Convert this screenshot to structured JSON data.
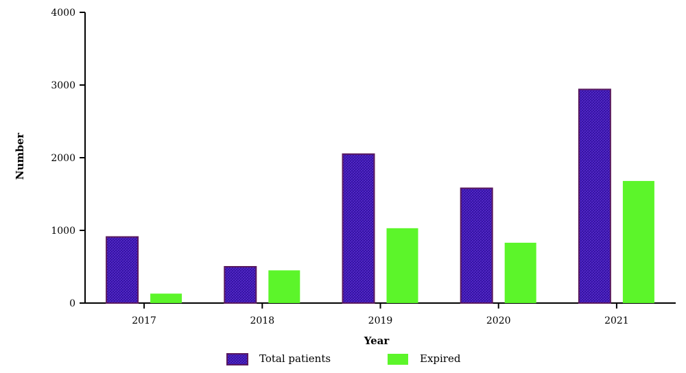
{
  "chart_data": {
    "type": "bar",
    "categories": [
      "2017",
      "2018",
      "2019",
      "2020",
      "2021"
    ],
    "series": [
      {
        "name": "Total patients",
        "values": [
          910,
          500,
          2050,
          1580,
          2940
        ],
        "color": "#3d16b8",
        "border": "#5a1a5e"
      },
      {
        "name": "Expired",
        "values": [
          130,
          450,
          1030,
          830,
          1680
        ],
        "color": "#5cf52a",
        "border": "#5cf52a"
      }
    ],
    "xlabel": "Year",
    "ylabel": "Number",
    "ylim": [
      0,
      4000
    ],
    "yticks": [
      "0",
      "1000",
      "2000",
      "3000",
      "4000"
    ],
    "grid": false,
    "legend_position": "bottom-center"
  }
}
